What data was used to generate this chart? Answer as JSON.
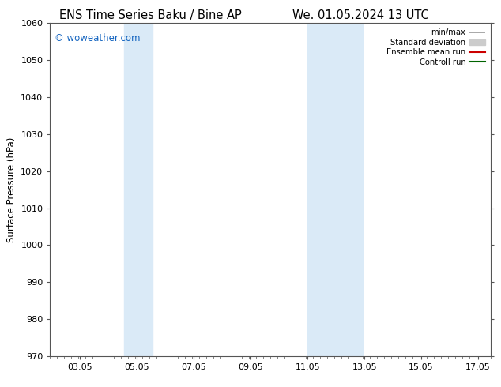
{
  "title_left": "ENS Time Series Baku / Bine AP",
  "title_right": "We. 01.05.2024 13 UTC",
  "ylabel": "Surface Pressure (hPa)",
  "ylim": [
    970,
    1060
  ],
  "yticks": [
    970,
    980,
    990,
    1000,
    1010,
    1020,
    1030,
    1040,
    1050,
    1060
  ],
  "xlim": [
    2.0,
    17.5
  ],
  "xticks": [
    3.05,
    5.05,
    7.05,
    9.05,
    11.05,
    13.05,
    15.05,
    17.05
  ],
  "xticklabels": [
    "03.05",
    "05.05",
    "07.05",
    "09.05",
    "11.05",
    "13.05",
    "15.05",
    "17.05"
  ],
  "watermark": "© woweather.com",
  "watermark_color": "#1565C0",
  "shaded_bands": [
    {
      "xmin": 4.6,
      "xmax": 5.6,
      "color": "#daeaf7"
    },
    {
      "xmin": 11.05,
      "xmax": 13.0,
      "color": "#daeaf7"
    }
  ],
  "legend_entries": [
    {
      "label": "min/max",
      "color": "#999999",
      "lw": 1.2
    },
    {
      "label": "Standard deviation",
      "color": "#cccccc",
      "lw": 6
    },
    {
      "label": "Ensemble mean run",
      "color": "#cc0000",
      "lw": 1.5
    },
    {
      "label": "Controll run",
      "color": "#006400",
      "lw": 1.5
    }
  ],
  "bg_color": "#ffffff",
  "plot_bg_color": "#ffffff",
  "font_color": "#000000",
  "title_fontsize": 10.5,
  "tick_fontsize": 8,
  "ylabel_fontsize": 8.5
}
